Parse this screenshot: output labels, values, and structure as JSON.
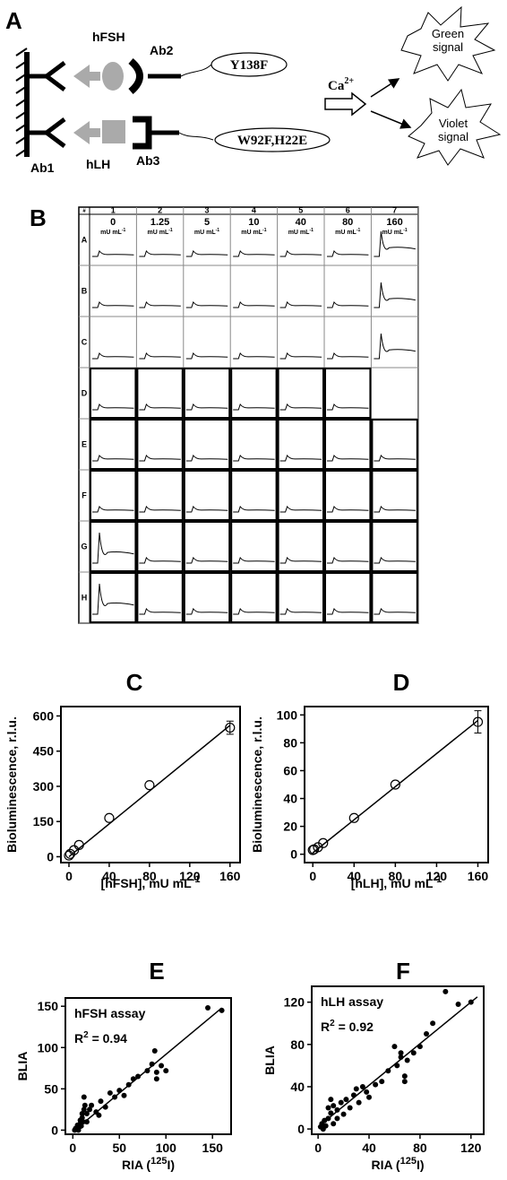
{
  "diagram": {
    "label": "A",
    "hfsh": "hFSH",
    "ab2": "Ab2",
    "y138f": "Y138F",
    "hlh": "hLH",
    "ab3": "Ab3",
    "w92f": "W92F,H22E",
    "ab1": "Ab1",
    "ca": "Ca",
    "ca_sup": "2+",
    "green": [
      "Green",
      "signal"
    ],
    "violet": [
      "Violet",
      "signal"
    ]
  },
  "plate": {
    "label": "B",
    "corner": "#",
    "columns": [
      "1",
      "2",
      "3",
      "4",
      "5",
      "6",
      "7"
    ],
    "rows": [
      "A",
      "B",
      "C",
      "D",
      "E",
      "F",
      "G",
      "H"
    ],
    "concentrations": [
      "0",
      "1.25",
      "5",
      "10",
      "40",
      "80",
      "160"
    ],
    "unit": "mU mL",
    "unit_sup": "-1"
  },
  "chart_data": [
    {
      "type": "scatter",
      "title": "C",
      "y_label": "Bioluminescence, r.l.u.",
      "x_label": "[hFSH], mU mL",
      "x_label_sup": "-1",
      "marker": "open",
      "x": [
        0,
        1.25,
        5,
        10,
        40,
        80,
        160
      ],
      "values": [
        5,
        12,
        28,
        50,
        165,
        305,
        550
      ],
      "errors": [
        null,
        null,
        null,
        null,
        null,
        null,
        28
      ],
      "fit_line": {
        "x": [
          0,
          160
        ],
        "y": [
          0,
          560
        ]
      },
      "xlim": [
        -8,
        170
      ],
      "ylim": [
        -25,
        640
      ],
      "xticks": [
        0,
        40,
        80,
        120,
        160
      ],
      "yticks": [
        0,
        150,
        300,
        450,
        600
      ]
    },
    {
      "type": "scatter",
      "title": "D",
      "y_label": "Bioluminescence, r.l.u.",
      "x_label": "[hLH], mU mL",
      "x_label_sup": "-1",
      "marker": "open",
      "x": [
        0,
        1.25,
        5,
        10,
        40,
        80,
        160
      ],
      "values": [
        3,
        3.5,
        5,
        8,
        26,
        50,
        95
      ],
      "errors": [
        null,
        null,
        null,
        null,
        null,
        null,
        8
      ],
      "fit_line": {
        "x": [
          0,
          160
        ],
        "y": [
          1,
          96
        ]
      },
      "xlim": [
        -8,
        170
      ],
      "ylim": [
        -6,
        106
      ],
      "xticks": [
        0,
        40,
        80,
        120,
        160
      ],
      "yticks": [
        0,
        20,
        40,
        60,
        80,
        100
      ]
    },
    {
      "type": "scatter",
      "title": "E",
      "y_label": "BLIA",
      "x_label": "RIA (",
      "x_label_sup": "125",
      "x_label_end": "I)",
      "marker": "filled",
      "annotation": "hFSH assay",
      "r2": {
        "base": "R",
        "sup": "2",
        "rest": " = 0.94"
      },
      "x": [
        2,
        3,
        4,
        5,
        5,
        6,
        7,
        8,
        8,
        9,
        10,
        10,
        11,
        12,
        12,
        13,
        15,
        15,
        18,
        20,
        25,
        28,
        30,
        35,
        40,
        45,
        50,
        55,
        60,
        65,
        70,
        80,
        85,
        88,
        90,
        90,
        95,
        100,
        145,
        160
      ],
      "values": [
        0,
        2,
        1,
        3,
        6,
        0,
        4,
        8,
        12,
        5,
        15,
        20,
        10,
        25,
        40,
        30,
        20,
        10,
        25,
        30,
        22,
        18,
        35,
        28,
        45,
        40,
        48,
        42,
        55,
        62,
        65,
        72,
        80,
        96,
        62,
        70,
        78,
        72,
        148,
        145
      ],
      "fit_line": {
        "x": [
          0,
          160
        ],
        "y": [
          -2,
          148
        ]
      },
      "xlim": [
        -8,
        170
      ],
      "ylim": [
        -5,
        160
      ],
      "xticks": [
        0,
        50,
        100,
        150
      ],
      "yticks": [
        0,
        50,
        100,
        150
      ]
    },
    {
      "type": "scatter",
      "title": "F",
      "y_label": "BLIA",
      "x_label": "RIA (",
      "x_label_sup": "125",
      "x_label_end": "I)",
      "marker": "filled",
      "annotation": "hLH assay",
      "r2": {
        "base": "R",
        "sup": "2",
        "rest": " = 0.92"
      },
      "x": [
        2,
        3,
        4,
        5,
        6,
        8,
        8,
        10,
        10,
        12,
        12,
        15,
        15,
        18,
        20,
        22,
        25,
        28,
        30,
        32,
        35,
        38,
        40,
        45,
        50,
        55,
        60,
        62,
        65,
        65,
        68,
        68,
        70,
        75,
        80,
        85,
        90,
        100,
        110,
        120
      ],
      "values": [
        2,
        5,
        0,
        8,
        3,
        10,
        20,
        15,
        28,
        5,
        22,
        18,
        10,
        25,
        14,
        28,
        20,
        32,
        38,
        25,
        40,
        35,
        30,
        42,
        45,
        55,
        78,
        60,
        68,
        72,
        50,
        45,
        65,
        72,
        78,
        90,
        100,
        130,
        118,
        120
      ],
      "fit_line": {
        "x": [
          0,
          125
        ],
        "y": [
          2,
          125
        ]
      },
      "xlim": [
        -5,
        130
      ],
      "ylim": [
        -5,
        135
      ],
      "xticks": [
        0,
        40,
        80,
        120
      ],
      "yticks": [
        0,
        40,
        80,
        120
      ]
    }
  ]
}
